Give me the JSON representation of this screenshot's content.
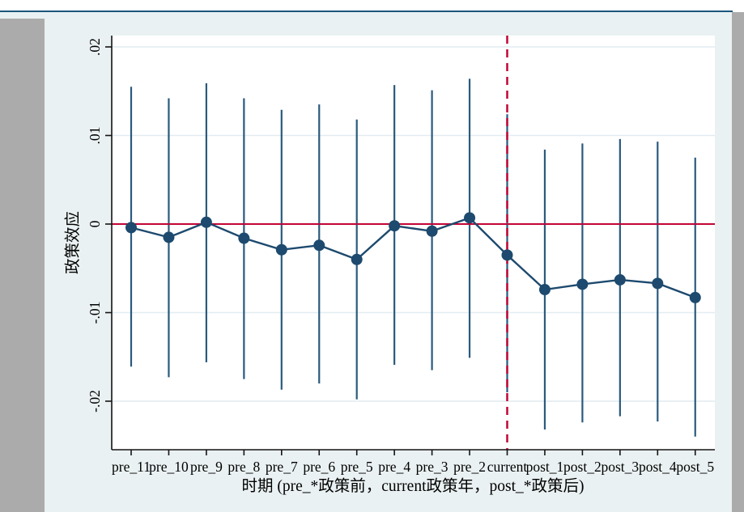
{
  "window": {
    "top_line_color": "#19567c",
    "chrome_color": "#ababab",
    "graph_background": "#eaf1f2",
    "plot_background": "#ffffff"
  },
  "chart_data": {
    "type": "line",
    "title": "",
    "xlabel": "时期 (pre_*政策前，current政策年，post_*政策后)",
    "ylabel": "政策效应",
    "categories": [
      "pre_11",
      "pre_10",
      "pre_9",
      "pre_8",
      "pre_7",
      "pre_6",
      "pre_5",
      "pre_4",
      "pre_3",
      "pre_2",
      "current",
      "post_1",
      "post_2",
      "post_3",
      "post_4",
      "post_5"
    ],
    "series": [
      {
        "name": "政策效应",
        "values": [
          -0.0004,
          -0.0015,
          0.0002,
          -0.0016,
          -0.0029,
          -0.0024,
          -0.004,
          -0.0002,
          -0.0008,
          0.0007,
          -0.0035,
          -0.0074,
          -0.0068,
          -0.0063,
          -0.0067,
          -0.0083
        ],
        "ci_high": [
          0.0155,
          0.0142,
          0.0159,
          0.0142,
          0.0129,
          0.0135,
          0.0118,
          0.0157,
          0.0151,
          0.0164,
          0.0124,
          0.0084,
          0.0091,
          0.0096,
          0.0093,
          0.0075
        ],
        "ci_low": [
          -0.0161,
          -0.0173,
          -0.0156,
          -0.0175,
          -0.0187,
          -0.018,
          -0.0198,
          -0.0159,
          -0.0165,
          -0.0151,
          -0.019,
          -0.0232,
          -0.0224,
          -0.0217,
          -0.0223,
          -0.024
        ]
      }
    ],
    "y_ticks": [
      {
        "value": 0.02,
        "label": ".02"
      },
      {
        "value": 0.01,
        "label": ".01"
      },
      {
        "value": 0.0,
        "label": "0"
      },
      {
        "value": -0.01,
        "label": "-.01"
      },
      {
        "value": -0.02,
        "label": "-.02"
      }
    ],
    "ylim": [
      -0.0256,
      0.0213
    ],
    "grid": true,
    "legend_position": "none",
    "reference_lines": {
      "hline_value": 0,
      "hline_style": "solid",
      "vline_category": "current",
      "vline_style": "dashed"
    },
    "colors": {
      "series": "#1d4a6e",
      "marker": "#1d4a6e",
      "ci": "#2a5a7e",
      "reference": "#c10534",
      "gridline": "#e2ecf1",
      "axis": "#141414"
    }
  }
}
